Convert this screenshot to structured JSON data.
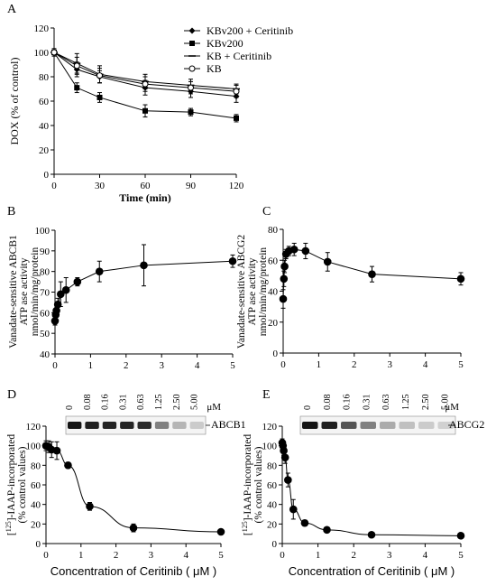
{
  "chart_data": [
    {
      "panel": "A",
      "type": "line",
      "xlabel": "Time (min)",
      "ylabel": "DOX (% of control)",
      "xlim": [
        0,
        120
      ],
      "ylim": [
        0,
        120
      ],
      "xticks": [
        "0",
        "30",
        "60",
        "90",
        "120"
      ],
      "yticks": [
        "0",
        "20",
        "40",
        "60",
        "80",
        "100",
        "120"
      ],
      "x": [
        0,
        15,
        30,
        60,
        90,
        120
      ],
      "legend_position": "top-right",
      "series": [
        {
          "name": "KBv200 + Ceritinib",
          "marker": "diamond",
          "values": [
            100,
            86,
            80,
            71,
            68,
            64
          ],
          "err": [
            3,
            6,
            5,
            6,
            5,
            5
          ]
        },
        {
          "name": "KBv200",
          "marker": "square",
          "values": [
            100,
            71,
            63,
            52,
            51,
            46
          ],
          "err": [
            3,
            4,
            4,
            5,
            3,
            3
          ]
        },
        {
          "name": "KB + Ceritinib",
          "marker": "dash",
          "values": [
            100,
            91,
            82,
            76,
            73,
            70
          ],
          "err": [
            3,
            8,
            7,
            6,
            5,
            4
          ]
        },
        {
          "name": "KB",
          "marker": "circle-open",
          "values": [
            100,
            89,
            81,
            74,
            71,
            68
          ],
          "err": [
            3,
            7,
            6,
            6,
            5,
            5
          ]
        }
      ]
    },
    {
      "panel": "B",
      "type": "line",
      "ylabel_lines": [
        "Vanadate-sensitive ABCB1",
        "ATP ase activity",
        "nmol/min/mg/protein"
      ],
      "xlim": [
        0,
        5
      ],
      "ylim": [
        40,
        100
      ],
      "xticks": [
        "0",
        "1",
        "2",
        "3",
        "4",
        "5"
      ],
      "yticks": [
        "40",
        "50",
        "60",
        "70",
        "80",
        "90",
        "100"
      ],
      "series": [
        {
          "x": [
            0,
            0.02,
            0.04,
            0.08,
            0.16,
            0.31,
            0.63,
            1.25,
            2.5,
            5
          ],
          "values": [
            56,
            59,
            61,
            64,
            69,
            71,
            75,
            80,
            83,
            85
          ],
          "err": [
            2,
            2,
            3,
            3,
            6,
            6,
            2,
            5,
            10,
            3
          ]
        }
      ]
    },
    {
      "panel": "C",
      "type": "line",
      "ylabel_lines": [
        "Vanadate-sensitive ABCG2",
        "ATP ase activity",
        "nmol/min/mg/protein"
      ],
      "xlim": [
        0,
        5
      ],
      "ylim": [
        0,
        80
      ],
      "xticks": [
        "0",
        "1",
        "2",
        "3",
        "4",
        "5"
      ],
      "yticks": [
        "0",
        "20",
        "40",
        "60",
        "80"
      ],
      "series": [
        {
          "x": [
            0,
            0.02,
            0.04,
            0.08,
            0.16,
            0.31,
            0.63,
            1.25,
            2.5,
            5
          ],
          "values": [
            35,
            48,
            56,
            64,
            66,
            67,
            66,
            59,
            51,
            48
          ],
          "err": [
            6,
            5,
            4,
            3,
            3,
            4,
            5,
            6,
            5,
            4
          ]
        }
      ]
    },
    {
      "panel": "D",
      "type": "line",
      "xlabel": "Concentration of Ceritinib ( μM )",
      "ylabel_lines": [
        "[125I]-IAAP-incorporated",
        "(% control values)"
      ],
      "xlim": [
        0,
        5
      ],
      "ylim": [
        0,
        120
      ],
      "xticks": [
        "0",
        "1",
        "2",
        "3",
        "4",
        "5"
      ],
      "yticks": [
        "0",
        "20",
        "40",
        "60",
        "80",
        "100",
        "120"
      ],
      "series": [
        {
          "x": [
            0,
            0.08,
            0.16,
            0.31,
            0.63,
            1.25,
            2.5,
            5
          ],
          "values": [
            100,
            99,
            96,
            95,
            80,
            38,
            16,
            12
          ],
          "err": [
            5,
            6,
            8,
            9,
            3,
            4,
            4,
            2
          ]
        }
      ],
      "blot": {
        "protein": "ABCB1",
        "unit": "μM",
        "concentrations": [
          "0",
          "0.08",
          "0.16",
          "0.31",
          "0.63",
          "1.25",
          "2.50",
          "5.00"
        ],
        "band_intensity": [
          1.0,
          0.95,
          0.93,
          0.92,
          0.9,
          0.5,
          0.25,
          0.15
        ]
      }
    },
    {
      "panel": "E",
      "type": "line",
      "xlabel": "Concentration of Ceritinib ( μM )",
      "ylabel_lines": [
        "[125I]-IAAP-incorporated",
        "(% control values)"
      ],
      "xlim": [
        0,
        5
      ],
      "ylim": [
        0,
        120
      ],
      "xticks": [
        "0",
        "1",
        "2",
        "3",
        "4",
        "5"
      ],
      "yticks": [
        "0",
        "20",
        "40",
        "60",
        "80",
        "100",
        "120"
      ],
      "series": [
        {
          "x": [
            0,
            0.02,
            0.04,
            0.08,
            0.16,
            0.31,
            0.63,
            1.25,
            2.5,
            5
          ],
          "values": [
            103,
            100,
            95,
            88,
            65,
            35,
            21,
            14,
            9,
            8
          ],
          "err": [
            4,
            4,
            5,
            6,
            7,
            10,
            3,
            2,
            2,
            1
          ]
        }
      ],
      "blot": {
        "protein": "ABCG2",
        "unit": "μM",
        "concentrations": [
          "0",
          "0.08",
          "0.16",
          "0.31",
          "0.63",
          "1.25",
          "2.50",
          "5.00"
        ],
        "band_intensity": [
          1.0,
          0.95,
          0.7,
          0.5,
          0.3,
          0.2,
          0.15,
          0.12
        ]
      }
    }
  ]
}
